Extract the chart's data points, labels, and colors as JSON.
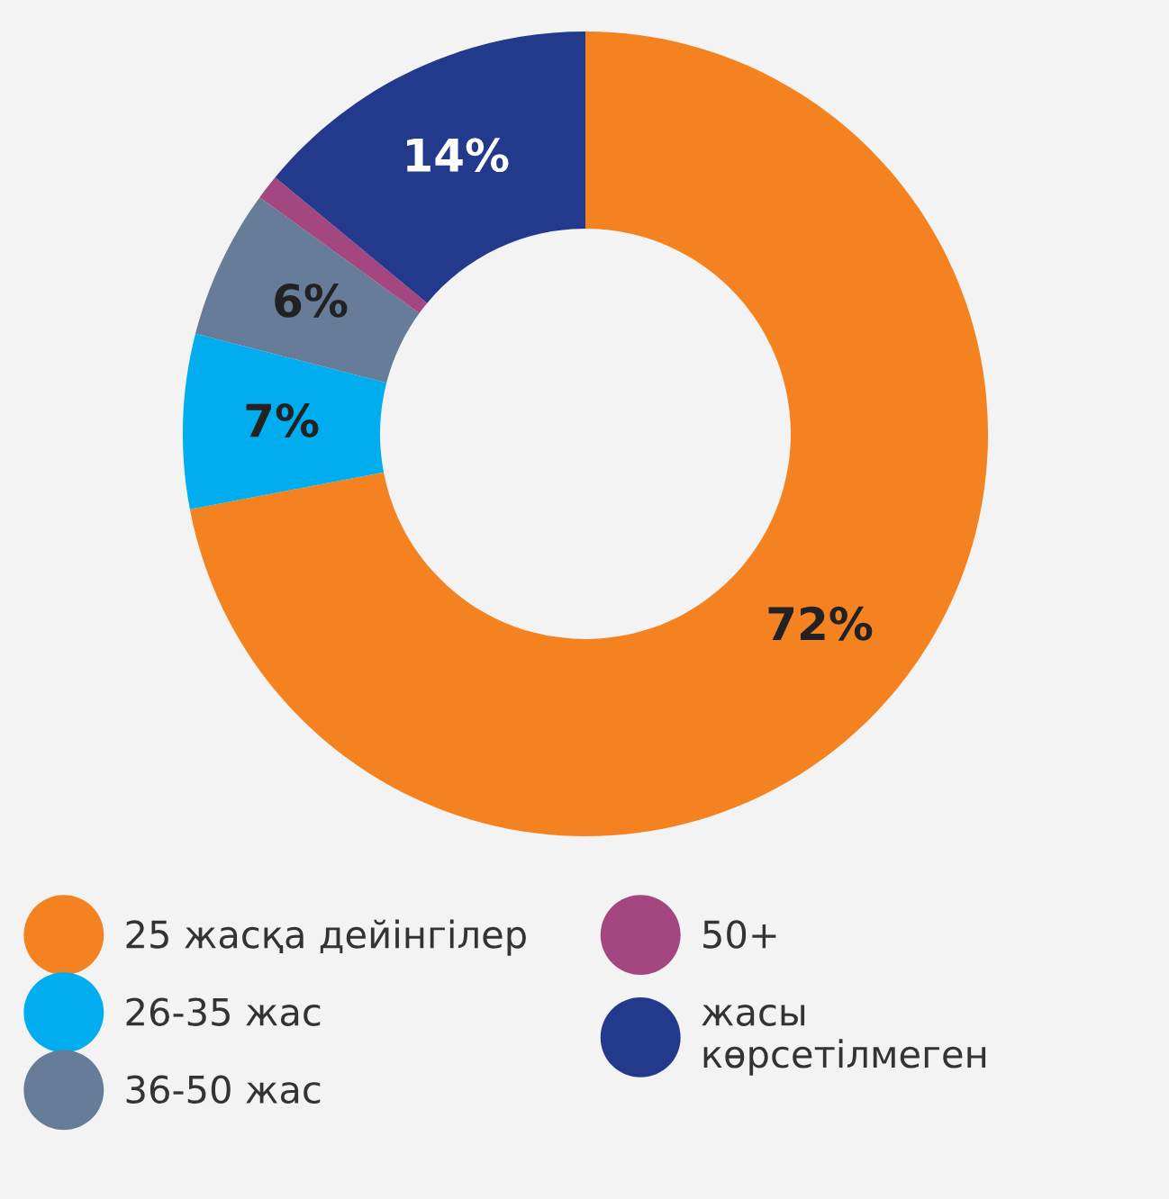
{
  "chart_data": {
    "type": "donut",
    "categories": [
      "25 жасқа дейінгілер",
      "26-35 жас",
      "36-50 жас",
      "50+",
      "жасы\nкөрсетілмеген"
    ],
    "values": [
      72,
      7,
      6,
      1,
      14
    ],
    "colors": [
      "#f48220",
      "#00aeef",
      "#667c99",
      "#a4467f",
      "#233a8c"
    ],
    "value_labels": [
      "72%",
      "7%",
      "6%",
      null,
      "14%"
    ],
    "legend": "bottom"
  }
}
